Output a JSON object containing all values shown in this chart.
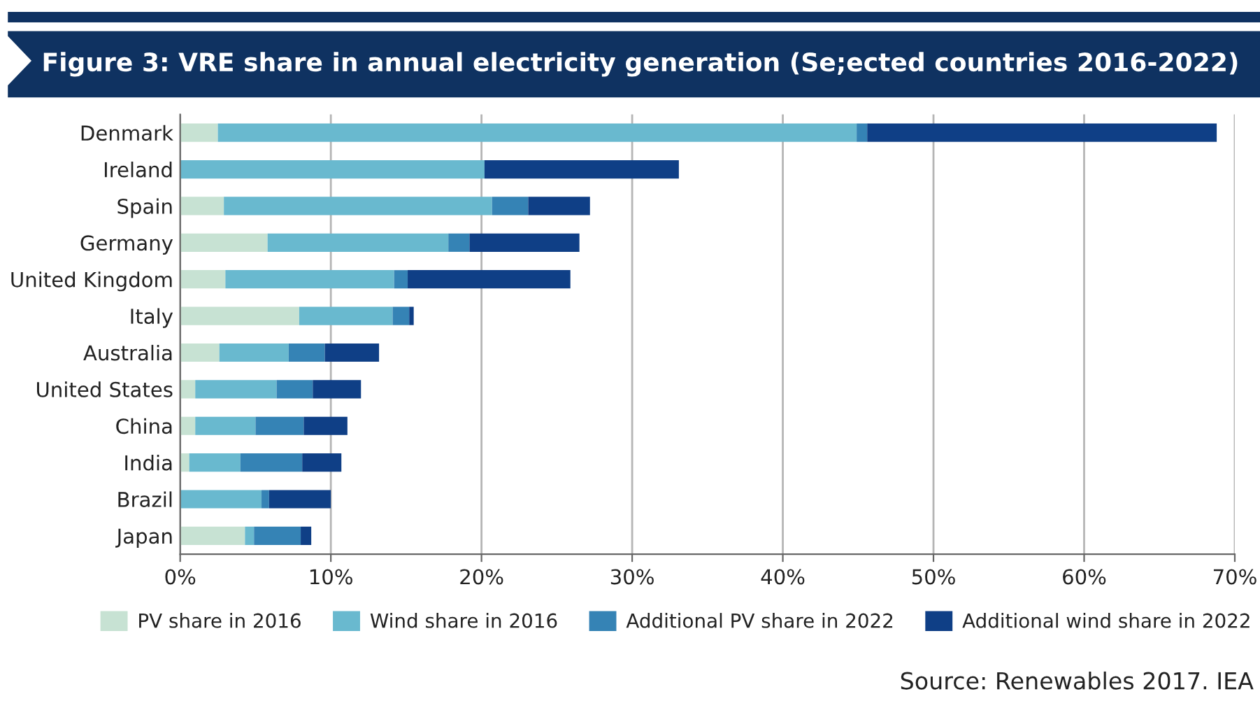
{
  "chart_data": {
    "type": "bar",
    "orientation": "horizontal",
    "stacked": true,
    "title": "Figure 3: VRE share in annual electricity generation (Se;ected countries 2016-2022)",
    "categories": [
      "Denmark",
      "Ireland",
      "Spain",
      "Germany",
      "United Kingdom",
      "Italy",
      "Australia",
      "United States",
      "China",
      "India",
      "Brazil",
      "Japan"
    ],
    "series": [
      {
        "name": "PV share in 2016",
        "color": "#c7e2d3",
        "values": [
          2.5,
          0,
          2.9,
          5.8,
          3.0,
          7.9,
          2.6,
          1.0,
          1.0,
          0.6,
          0,
          4.3
        ]
      },
      {
        "name": "Wind share in 2016",
        "color": "#69b9cf",
        "values": [
          42.4,
          20.2,
          17.8,
          12.0,
          11.2,
          6.2,
          4.6,
          5.4,
          4.0,
          3.4,
          5.4,
          0.6
        ]
      },
      {
        "name": "Additional PV share in 2022",
        "color": "#3583b5",
        "values": [
          0.7,
          0,
          2.4,
          1.4,
          0.9,
          1.1,
          2.4,
          2.4,
          3.2,
          4.1,
          0.5,
          3.1
        ]
      },
      {
        "name": "Additional wind share in 2022",
        "color": "#0f3f86",
        "values": [
          23.2,
          12.9,
          4.1,
          7.3,
          10.8,
          0.3,
          3.6,
          3.2,
          2.9,
          2.6,
          4.1,
          0.7
        ]
      }
    ],
    "xlim": [
      0,
      70
    ],
    "xticks": [
      {
        "value": 0,
        "label": "0%"
      },
      {
        "value": 10,
        "label": "10%"
      },
      {
        "value": 20,
        "label": "20%"
      },
      {
        "value": 30,
        "label": "30%"
      },
      {
        "value": 40,
        "label": "40%"
      },
      {
        "value": 50,
        "label": "50%"
      },
      {
        "value": 60,
        "label": "60%"
      },
      {
        "value": 70,
        "label": "70%"
      }
    ],
    "grid": "x",
    "legend": "bottom",
    "annotations": [
      "Source: Renewables 2017. IEA"
    ]
  }
}
